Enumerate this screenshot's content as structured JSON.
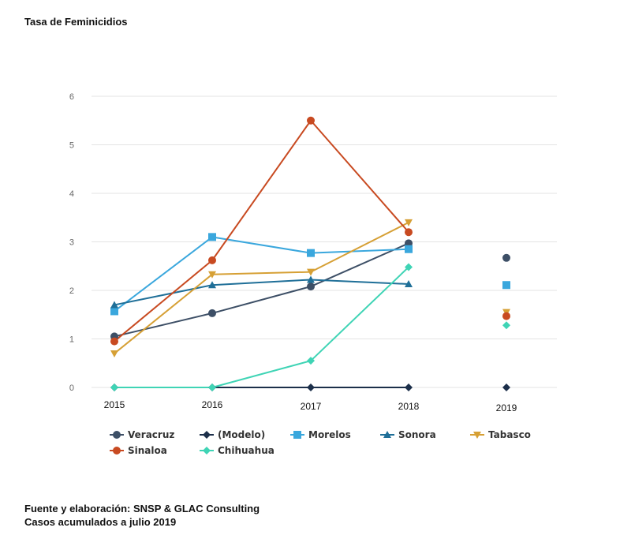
{
  "title": "Tasa de Feminicidios",
  "footer": {
    "line1": "Fuente y elaboración: SNSP & GLAC Consulting",
    "line2": "Casos acumulados a julio 2019"
  },
  "chart_data": {
    "type": "line",
    "title": "Tasa de Feminicidios",
    "categories": [
      "2015",
      "2016",
      "2017",
      "2018",
      "2019"
    ],
    "ylim": [
      0,
      6
    ],
    "yticks": [
      0,
      1,
      2,
      3,
      4,
      5,
      6
    ],
    "grid": true,
    "legend_position": "bottom",
    "series": [
      {
        "name": "Veracruz",
        "color": "#3d4f66",
        "marker": "circle",
        "values": [
          1.05,
          1.53,
          2.08,
          2.97,
          2.67
        ],
        "connected_to": 3
      },
      {
        "name": "(Modelo)",
        "color": "#1c2f4a",
        "marker": "diamond",
        "values": [
          0,
          0,
          0,
          0,
          0
        ],
        "connected_to": 3
      },
      {
        "name": "Morelos",
        "color": "#3aa7dd",
        "marker": "square",
        "values": [
          1.57,
          3.1,
          2.77,
          2.85,
          2.11
        ],
        "connected_to": 3
      },
      {
        "name": "Sonora",
        "color": "#1f6f98",
        "marker": "triangle",
        "values": [
          1.7,
          2.11,
          2.22,
          2.13,
          null
        ],
        "connected_to": 3
      },
      {
        "name": "Tabasco",
        "color": "#d6a035",
        "marker": "triangle-down",
        "values": [
          0.7,
          2.33,
          2.38,
          3.4,
          1.55
        ],
        "connected_to": 3
      },
      {
        "name": "Sinaloa",
        "color": "#c84a21",
        "marker": "circle",
        "values": [
          0.95,
          2.62,
          5.5,
          3.2,
          1.47
        ],
        "connected_to": 3
      },
      {
        "name": "Chihuahua",
        "color": "#3fd4b5",
        "marker": "diamond",
        "values": [
          0,
          0,
          0.55,
          2.48,
          1.28
        ],
        "connected_to": 3
      }
    ]
  }
}
